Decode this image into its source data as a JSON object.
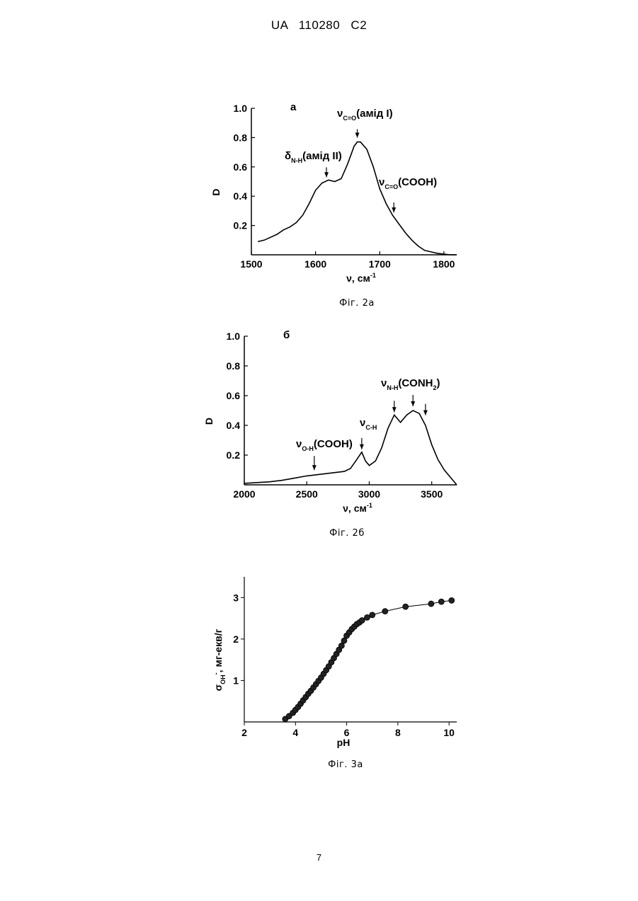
{
  "header": "UA 110280 C2",
  "page_number": "7",
  "figures": [
    {
      "caption": "Фіг. 2а"
    },
    {
      "caption": "Фіг. 2б"
    },
    {
      "caption": "Фіг. 3а"
    }
  ],
  "chart_data": [
    {
      "type": "line",
      "panel_letter": "а",
      "xlabel": "ν, см",
      "xlabel_sup": "-1",
      "ylabel": "D",
      "xlim": [
        1500,
        1820
      ],
      "ylim": [
        0,
        1.0
      ],
      "xticks": [
        1500,
        1600,
        1700,
        1800
      ],
      "yticks": [
        0.2,
        0.4,
        0.6,
        0.8,
        1.0
      ],
      "x": [
        1510,
        1520,
        1530,
        1540,
        1550,
        1560,
        1570,
        1580,
        1590,
        1600,
        1610,
        1620,
        1630,
        1640,
        1650,
        1660,
        1665,
        1670,
        1680,
        1690,
        1700,
        1710,
        1720,
        1730,
        1740,
        1750,
        1760,
        1770,
        1780,
        1790,
        1800,
        1810,
        1820
      ],
      "y": [
        0.09,
        0.1,
        0.12,
        0.14,
        0.17,
        0.19,
        0.22,
        0.27,
        0.35,
        0.44,
        0.49,
        0.51,
        0.5,
        0.52,
        0.62,
        0.74,
        0.77,
        0.77,
        0.72,
        0.6,
        0.45,
        0.35,
        0.27,
        0.21,
        0.15,
        0.1,
        0.06,
        0.03,
        0.02,
        0.01,
        0.005,
        0.0,
        0.0
      ],
      "annotations": [
        {
          "symbol": "δ",
          "sub": "N-H",
          "text": "(амід II)",
          "x": 1617,
          "y": 0.51
        },
        {
          "symbol": "ν",
          "sub": "C=O",
          "text": "(амід I)",
          "x": 1665,
          "y": 0.78
        },
        {
          "symbol": "ν",
          "sub": "C=O",
          "text": "(COOH)",
          "x": 1722,
          "y": 0.27
        }
      ]
    },
    {
      "type": "line",
      "panel_letter": "б",
      "xlabel": "ν, см",
      "xlabel_sup": "-1",
      "ylabel": "D",
      "xlim": [
        2000,
        3700
      ],
      "ylim": [
        0,
        1.0
      ],
      "xticks": [
        2000,
        2500,
        3000,
        3500
      ],
      "yticks": [
        0.2,
        0.4,
        0.6,
        0.8,
        1.0
      ],
      "x": [
        2000,
        2100,
        2200,
        2300,
        2400,
        2500,
        2600,
        2700,
        2800,
        2850,
        2900,
        2940,
        2970,
        3000,
        3050,
        3100,
        3150,
        3200,
        3250,
        3300,
        3350,
        3400,
        3450,
        3500,
        3550,
        3600,
        3650,
        3700
      ],
      "y": [
        0.01,
        0.015,
        0.02,
        0.03,
        0.045,
        0.06,
        0.07,
        0.08,
        0.09,
        0.11,
        0.17,
        0.22,
        0.16,
        0.13,
        0.16,
        0.25,
        0.38,
        0.47,
        0.42,
        0.47,
        0.5,
        0.48,
        0.4,
        0.27,
        0.17,
        0.1,
        0.05,
        0.0
      ],
      "annotations": [
        {
          "symbol": "ν",
          "sub": "O-H",
          "text": "(COOH)",
          "x": 2560,
          "y": 0.08
        },
        {
          "symbol": "ν",
          "sub": "C-H",
          "text": "",
          "x": 2940,
          "y": 0.22
        },
        {
          "symbol": "ν",
          "sub": "N-H",
          "text": "(CONH",
          "text_sub": "2",
          "text_end": ")",
          "x": 3200,
          "y": 0.47
        }
      ]
    },
    {
      "type": "scatter",
      "xlabel": "pH",
      "ylabel": "σ",
      "ylabel_sub": "OH",
      "ylabel_sup": "-",
      "ylabel_rest": ", мг-екв/г",
      "xlim": [
        2,
        10.3
      ],
      "ylim": [
        0,
        3.5
      ],
      "xticks": [
        2,
        4,
        6,
        8,
        10
      ],
      "yticks": [
        1,
        2,
        3
      ],
      "x": [
        3.6,
        3.75,
        3.9,
        4.0,
        4.1,
        4.2,
        4.3,
        4.4,
        4.5,
        4.6,
        4.7,
        4.8,
        4.9,
        5.0,
        5.1,
        5.2,
        5.3,
        5.4,
        5.5,
        5.6,
        5.7,
        5.8,
        5.9,
        6.0,
        6.1,
        6.2,
        6.3,
        6.4,
        6.5,
        6.6,
        6.8,
        7.0,
        7.5,
        8.3,
        9.3,
        9.7,
        10.1
      ],
      "y": [
        0.07,
        0.14,
        0.22,
        0.29,
        0.36,
        0.44,
        0.52,
        0.6,
        0.68,
        0.75,
        0.83,
        0.91,
        0.99,
        1.07,
        1.16,
        1.25,
        1.34,
        1.44,
        1.54,
        1.64,
        1.74,
        1.84,
        1.96,
        2.08,
        2.16,
        2.24,
        2.3,
        2.36,
        2.4,
        2.45,
        2.52,
        2.58,
        2.67,
        2.78,
        2.85,
        2.9,
        2.93
      ]
    }
  ]
}
